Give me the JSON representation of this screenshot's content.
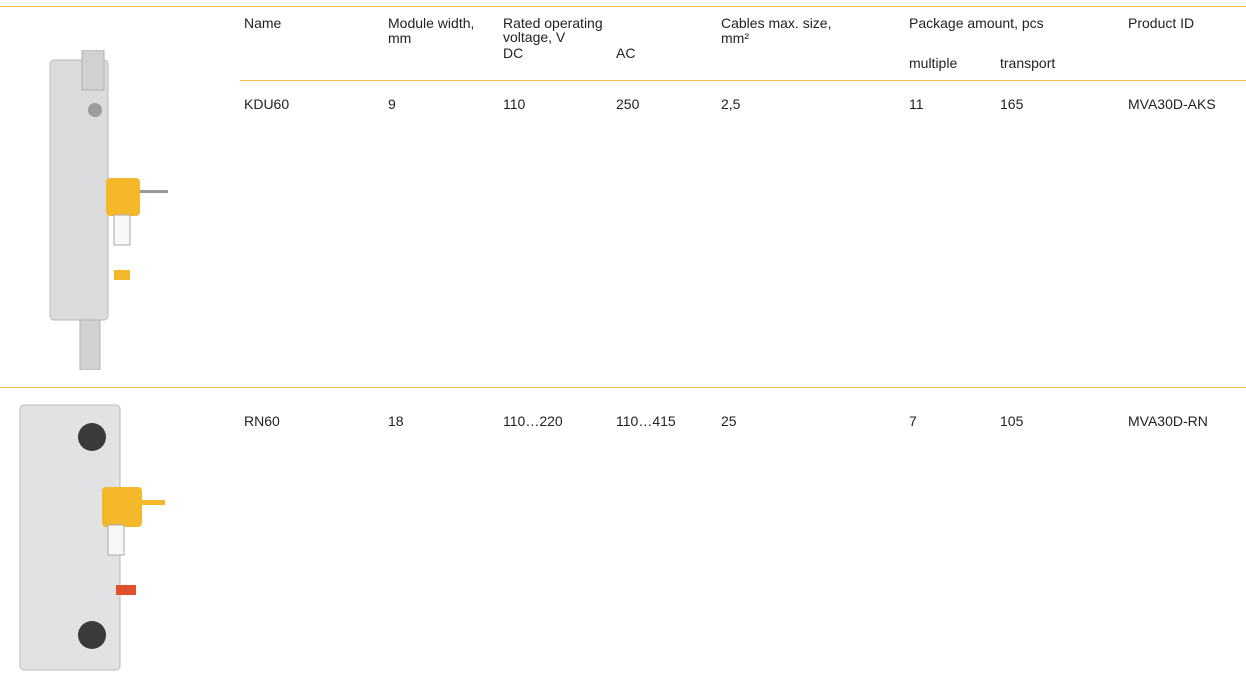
{
  "header": {
    "name": "Name",
    "module_width": "Module width, mm",
    "voltage": "Rated operating voltage, V",
    "dc": "DC",
    "ac": "AC",
    "cables": "Cables max. size, mm²",
    "package": "Package amount, pcs",
    "multiple": "multiple",
    "transport": "transport",
    "product_id": "Product ID"
  },
  "rows": [
    [
      "KDU60",
      "9",
      "110",
      "250",
      "2,5",
      "11",
      "165",
      "MVA30D-AKS"
    ],
    [
      "RN60",
      "18",
      "110…220",
      "110…415",
      "25",
      "7",
      "105",
      "MVA30D-RN"
    ]
  ]
}
